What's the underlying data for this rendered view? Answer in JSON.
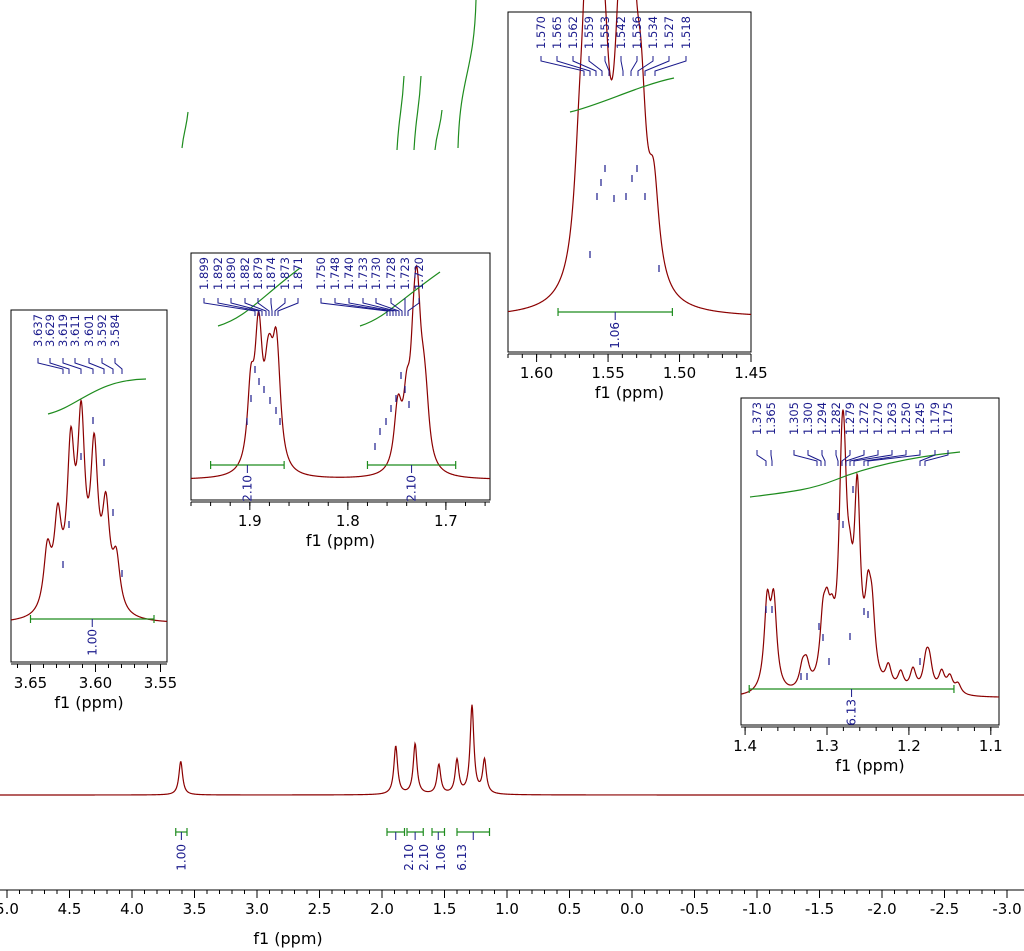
{
  "chart_data": {
    "type": "line",
    "title": "",
    "colors": {
      "spectrum": "#8b0000",
      "integral": "#1e8c1e",
      "peak_label": "#1a1a8c"
    },
    "main": {
      "xlabel": "f1 (ppm)",
      "xlim": [
        5.0,
        -3.0
      ],
      "ticks": [
        "5.0",
        "4.5",
        "4.0",
        "3.5",
        "3.0",
        "2.5",
        "2.0",
        "1.5",
        "1.0",
        "0.5",
        "0.0",
        "-0.5",
        "-1.0",
        "-1.5",
        "-2.0",
        "-2.5",
        "-3.0"
      ],
      "signals": [
        {
          "center": 3.61,
          "height": 0.16
        },
        {
          "center": 1.89,
          "height": 0.23
        },
        {
          "center": 1.735,
          "height": 0.24
        },
        {
          "center": 1.545,
          "height": 0.14
        },
        {
          "center": 1.4,
          "height": 0.16
        },
        {
          "center": 1.28,
          "height": 0.42
        },
        {
          "center": 1.18,
          "height": 0.16
        }
      ],
      "integrals": [
        {
          "from": 3.65,
          "to": 3.56,
          "value": "1.00"
        },
        {
          "from": 1.96,
          "to": 1.82,
          "value": "2.10"
        },
        {
          "from": 1.8,
          "to": 1.67,
          "value": "2.10"
        },
        {
          "from": 1.6,
          "to": 1.5,
          "value": "1.06"
        },
        {
          "from": 1.4,
          "to": 1.14,
          "value": "6.13"
        }
      ]
    },
    "insets": [
      {
        "id": "inset-1",
        "xlabel": "f1 (ppm)",
        "xlim": [
          3.665,
          3.545
        ],
        "ticks": [
          3.65,
          3.6,
          3.55
        ],
        "tick_labels": [
          "3.65",
          "3.60",
          "3.55"
        ],
        "peaks": [
          "3.637",
          "3.629",
          "3.619",
          "3.611",
          "3.601",
          "3.592",
          "3.584"
        ],
        "integral": {
          "value": "1.00",
          "from": 3.65,
          "to": 3.555
        }
      },
      {
        "id": "inset-2",
        "xlabel": "f1 (ppm)",
        "xlim": [
          1.96,
          1.655
        ],
        "ticks": [
          1.9,
          1.8,
          1.7
        ],
        "tick_labels": [
          "1.9",
          "1.8",
          "1.7"
        ],
        "peaks": [
          "1.899",
          "1.892",
          "1.890",
          "1.882",
          "1.879",
          "1.874",
          "1.873",
          "1.871",
          "1.750",
          "1.748",
          "1.740",
          "1.733",
          "1.730",
          "1.728",
          "1.723",
          "1.720"
        ],
        "integrals": [
          {
            "value": "2.10",
            "from": 1.94,
            "to": 1.865
          },
          {
            "value": "2.10",
            "from": 1.78,
            "to": 1.69
          }
        ]
      },
      {
        "id": "inset-3",
        "xlabel": "f1 (ppm)",
        "xlim": [
          1.62,
          1.45
        ],
        "ticks": [
          1.6,
          1.55,
          1.5,
          1.45
        ],
        "tick_labels": [
          "1.60",
          "1.55",
          "1.50",
          "1.45"
        ],
        "peaks": [
          "1.570",
          "1.565",
          "1.562",
          "1.559",
          "1.553",
          "1.542",
          "1.536",
          "1.534",
          "1.527",
          "1.518"
        ],
        "integral": {
          "value": "1.06",
          "from": 1.585,
          "to": 1.505
        }
      },
      {
        "id": "inset-4",
        "xlabel": "f1 (ppm)",
        "xlim": [
          1.405,
          1.09
        ],
        "ticks": [
          1.4,
          1.3,
          1.2,
          1.1
        ],
        "tick_labels": [
          "1.4",
          "1.3",
          "1.2",
          "1.1"
        ],
        "peaks": [
          "1.373",
          "1.365",
          "1.305",
          "1.300",
          "1.294",
          "1.282",
          "1.279",
          "1.272",
          "1.270",
          "1.263",
          "1.250",
          "1.245",
          "1.179",
          "1.175"
        ],
        "integral": {
          "value": "6.13",
          "from": 1.395,
          "to": 1.145
        }
      }
    ]
  }
}
